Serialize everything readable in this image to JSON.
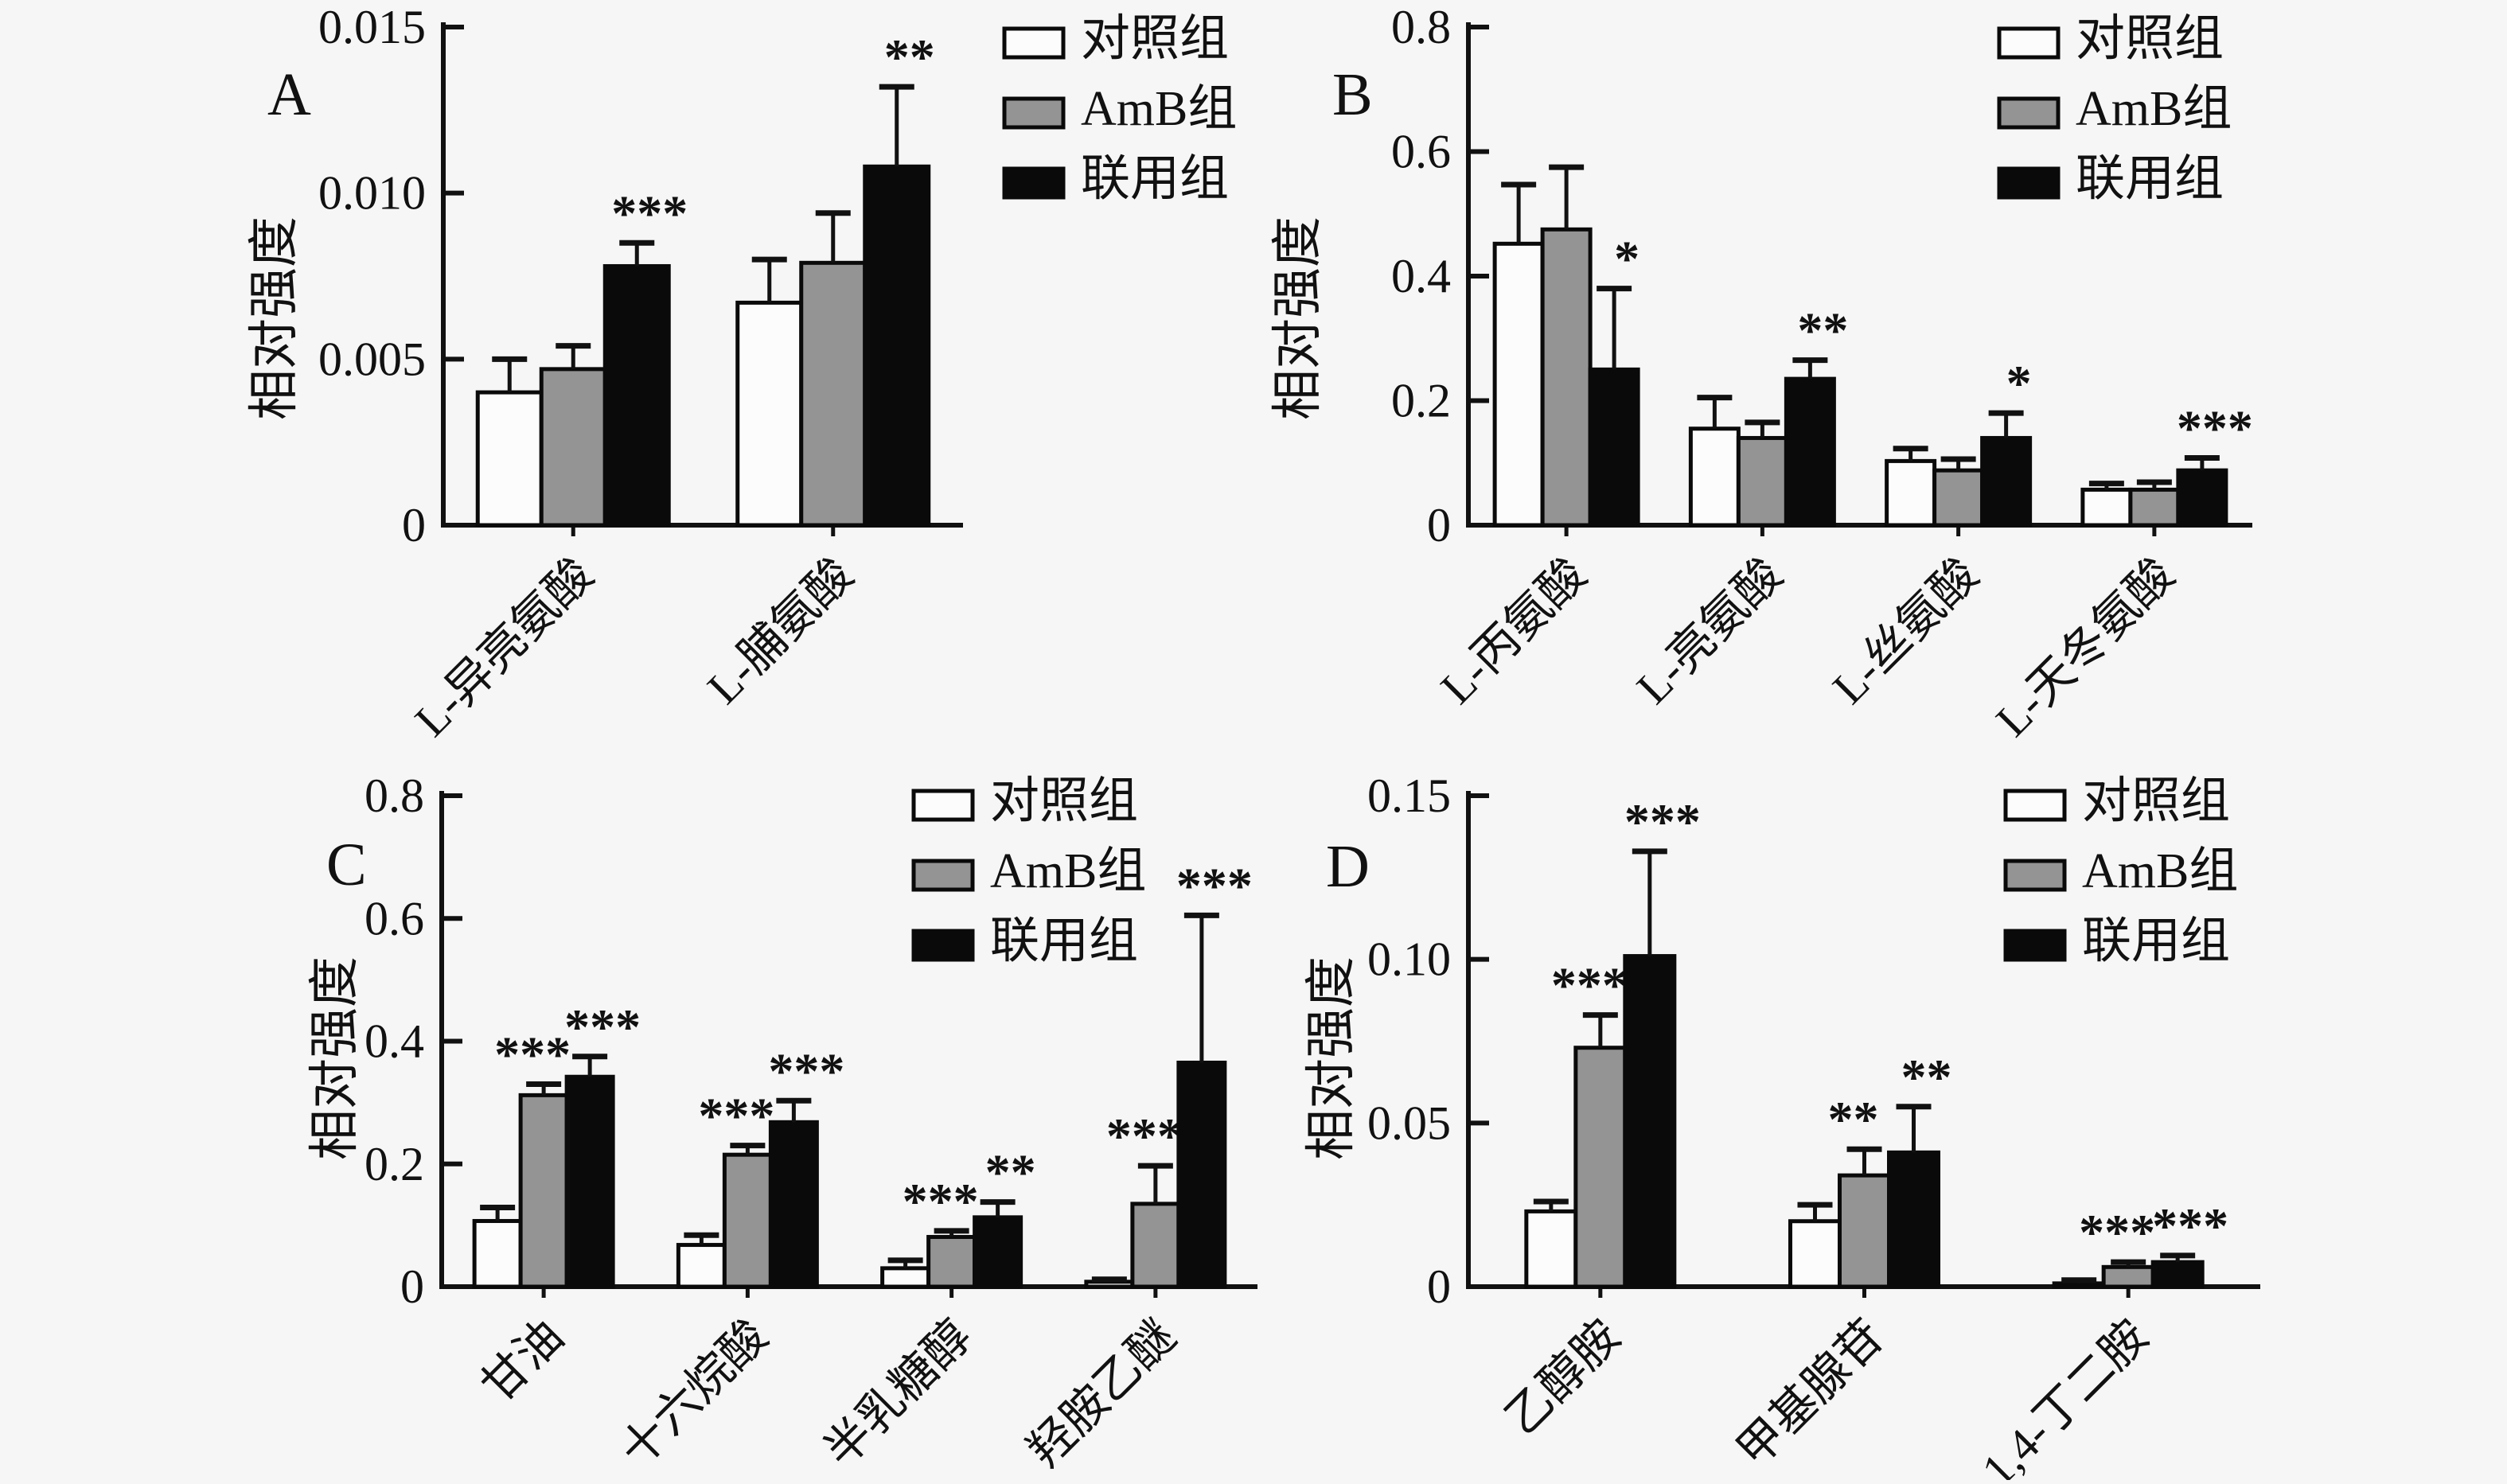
{
  "figure": {
    "y_axis_title": "相对强度",
    "background": "#f6f6f6",
    "colors": {
      "control": "#fcfcfc",
      "amb": "#949494",
      "combo": "#0a0a0a",
      "axis": "#111111"
    },
    "legend": {
      "position": "top-right",
      "items": [
        {
          "label": "对照组",
          "fill": "#fcfcfc"
        },
        {
          "label": "AmB组",
          "fill": "#949494"
        },
        {
          "label": "联用组",
          "fill": "#0a0a0a"
        }
      ]
    }
  },
  "chart_data": [
    {
      "type": "bar",
      "panel": "A",
      "title": "",
      "xlabel": "",
      "ylabel": "相对强度",
      "ylim": [
        0,
        0.015
      ],
      "yticks": {
        "values": [
          0,
          0.005,
          0.01,
          0.015
        ],
        "labels": [
          "0",
          "0.005",
          "0.010",
          "0.015"
        ]
      },
      "grid": false,
      "legend_position": "top-right",
      "categories": [
        "L-异亮氨酸",
        "L-脯氨酸"
      ],
      "series": [
        {
          "name": "对照组",
          "values": [
            0.004,
            0.0067
          ],
          "errors": [
            0.001,
            0.0013
          ],
          "sig": [
            "",
            ""
          ]
        },
        {
          "name": "AmB组",
          "values": [
            0.0047,
            0.0079
          ],
          "errors": [
            0.0007,
            0.0015
          ],
          "sig": [
            "",
            ""
          ]
        },
        {
          "name": "联用组",
          "values": [
            0.0078,
            0.0108
          ],
          "errors": [
            0.0007,
            0.0024
          ],
          "sig": [
            "***",
            "**"
          ]
        }
      ]
    },
    {
      "type": "bar",
      "panel": "B",
      "title": "",
      "xlabel": "",
      "ylabel": "相对强度",
      "ylim": [
        0,
        0.8
      ],
      "yticks": {
        "values": [
          0,
          0.2,
          0.4,
          0.6,
          0.8
        ],
        "labels": [
          "0",
          "0.2",
          "0.4",
          "0.6",
          "0.8"
        ]
      },
      "grid": false,
      "legend_position": "top-right",
      "categories": [
        "L-丙氨酸",
        "L-亮氨酸",
        "L-丝氨酸",
        "L-天冬氨酸"
      ],
      "series": [
        {
          "name": "对照组",
          "values": [
            0.452,
            0.155,
            0.103,
            0.057
          ],
          "errors": [
            0.095,
            0.05,
            0.02,
            0.01
          ],
          "sig": [
            "",
            "",
            "",
            ""
          ]
        },
        {
          "name": "AmB组",
          "values": [
            0.475,
            0.14,
            0.088,
            0.057
          ],
          "errors": [
            0.1,
            0.025,
            0.018,
            0.012
          ],
          "sig": [
            "",
            "",
            "",
            ""
          ]
        },
        {
          "name": "联用组",
          "values": [
            0.25,
            0.235,
            0.14,
            0.088
          ],
          "errors": [
            0.13,
            0.03,
            0.04,
            0.02
          ],
          "sig": [
            "*",
            "**",
            "*",
            "***"
          ]
        }
      ]
    },
    {
      "type": "bar",
      "panel": "C",
      "title": "",
      "xlabel": "",
      "ylabel": "相对强度",
      "ylim": [
        0,
        0.8
      ],
      "yticks": {
        "values": [
          0,
          0.2,
          0.4,
          0.6,
          0.8
        ],
        "labels": [
          "0",
          "0.2",
          "0.4",
          "0.6",
          "0.8"
        ]
      },
      "grid": false,
      "legend_position": "top-right",
      "categories": [
        "甘油",
        "十六烷酸",
        "半乳糖醇",
        "羟胺乙醚"
      ],
      "series": [
        {
          "name": "对照组",
          "values": [
            0.107,
            0.068,
            0.03,
            0.008
          ],
          "errors": [
            0.022,
            0.016,
            0.013,
            0.004
          ],
          "sig": [
            "",
            "",
            "",
            ""
          ]
        },
        {
          "name": "AmB组",
          "values": [
            0.312,
            0.215,
            0.081,
            0.135
          ],
          "errors": [
            0.018,
            0.015,
            0.01,
            0.062
          ],
          "sig": [
            "***",
            "***",
            "***",
            "***"
          ]
        },
        {
          "name": "联用组",
          "values": [
            0.342,
            0.268,
            0.113,
            0.365
          ],
          "errors": [
            0.033,
            0.035,
            0.025,
            0.24
          ],
          "sig": [
            "***",
            "***",
            "**",
            "***"
          ]
        }
      ]
    },
    {
      "type": "bar",
      "panel": "D",
      "title": "",
      "xlabel": "",
      "ylabel": "相对强度",
      "ylim": [
        0,
        0.15
      ],
      "yticks": {
        "values": [
          0,
          0.05,
          0.1,
          0.15
        ],
        "labels": [
          "0",
          "0.05",
          "0.10",
          "0.15"
        ]
      },
      "grid": false,
      "legend_position": "top-right",
      "categories": [
        "乙醇胺",
        "甲基腺苷",
        "1,4-丁二胺"
      ],
      "series": [
        {
          "name": "对照组",
          "values": [
            0.023,
            0.02,
            0.001
          ],
          "errors": [
            0.003,
            0.005,
            0.001
          ],
          "sig": [
            "",
            "",
            ""
          ]
        },
        {
          "name": "AmB组",
          "values": [
            0.073,
            0.034,
            0.006
          ],
          "errors": [
            0.01,
            0.008,
            0.0015
          ],
          "sig": [
            "***",
            "**",
            "***"
          ]
        },
        {
          "name": "联用组",
          "values": [
            0.101,
            0.041,
            0.0075
          ],
          "errors": [
            0.032,
            0.014,
            0.002
          ],
          "sig": [
            "***",
            "**",
            "***"
          ]
        }
      ]
    }
  ]
}
